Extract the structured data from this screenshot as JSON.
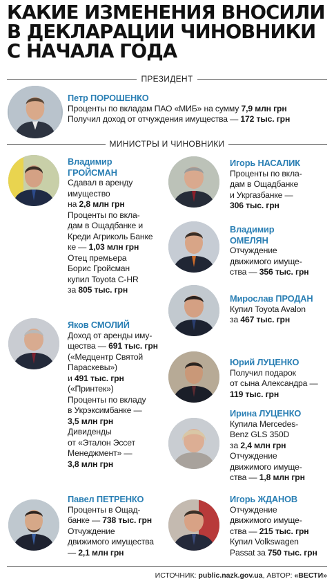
{
  "title": {
    "line1": "КАКИЕ ИЗМЕНЕНИЯ ВНОСИЛИ",
    "line2": "В ДЕКЛАРАЦИИ ЧИНОВНИКИ",
    "line3": "С НАЧАЛА ГОДА"
  },
  "sections": {
    "president": "ПРЕЗИДЕНТ",
    "ministers": "МИНИСТРЫ И ЧИНОВНИКИ"
  },
  "president": {
    "name": "Петр ПОРОШЕНКО",
    "l1_text": "Проценты по вкладам ПАО «МИБ» на сумму",
    "l1_amount": "7,9 млн грн",
    "l2_text": "Получил доход от отчуждения имущества —",
    "l2_amount": "172 тыс. грн"
  },
  "groysman": {
    "name1": "Владимир",
    "name2": "ГРОЙСМАН",
    "l1": "Сдавал в аренду",
    "l2": "имущество",
    "l3_pre": "на",
    "l3_amount": "2,8 млн грн",
    "l4": "Проценты по вкла-",
    "l5": "дам в Ощадбанке и",
    "l6": "Креди Агриколь Банке",
    "l7_text": "ке —",
    "l7_amount": "1,03 млн грн",
    "l8": "Отец премьера",
    "l9": "Борис Гройсман",
    "l10": "купил Toyota C-HR",
    "l11_pre": "за",
    "l11_amount": "805 тыс. грн"
  },
  "smoliy": {
    "name": "Яков СМОЛИЙ",
    "l1": "Доход от аренды иму-",
    "l2_text": "щества —",
    "l2_amount": "691 тыс. грн",
    "l3": "(«Медцентр Святой",
    "l4": "Параскевы»)",
    "l5_pre": "и",
    "l5_amount": "491 тыс. грн",
    "l6": "(«Принтек»)",
    "l7": "Проценты по вкладу",
    "l8": "в Укрэксимбанке —",
    "l9_amount": "3,5 млн грн",
    "l10": "Дивиденды",
    "l11": "от «Эталон Эссет",
    "l12": "Менеджмент» —",
    "l13_amount": "3,8 млн грн"
  },
  "petrenko": {
    "name": "Павел ПЕТРЕНКО",
    "l1": "Проценты в Ощад-",
    "l2_text": "банке —",
    "l2_amount": "738 тыс. грн",
    "l3": "Отчуждение",
    "l4": "движимого имущества",
    "l5_amount": "2,1 млн грн"
  },
  "nasalik": {
    "name": "Игорь НАСАЛИК",
    "l1": "Проценты по вкла-",
    "l2": "дам в Ощадбанке",
    "l3": "и Укргазбанке —",
    "l4_amount": "306 тыс. грн"
  },
  "omelyan": {
    "name1": "Владимир",
    "name2": "ОМЕЛЯН",
    "l1": "Отчуждение",
    "l2": "движимого имуще-",
    "l3_text": "ства —",
    "l3_amount": "356 тыс. грн"
  },
  "prodan": {
    "name": "Мирослав ПРОДАН",
    "l1": "Купил Toyota Avalon",
    "l2_pre": "за",
    "l2_amount": "467 тыс. грн"
  },
  "lutsenko_y": {
    "name": "Юрий ЛУЦЕНКО",
    "l1": "Получил подарок",
    "l2": "от сына Александра —",
    "l3_amount": "119 тыс. грн"
  },
  "lutsenko_i": {
    "name": "Ирина ЛУЦЕНКО",
    "l1": "Купила Mercedes-",
    "l2": "Benz GLS 350D",
    "l3_pre": "за",
    "l3_amount": "2,4 млн грн",
    "l4": "Отчуждение",
    "l5": "движимого имуще-",
    "l6_text": "ства —",
    "l6_amount": "1,8 млн грн"
  },
  "zhdanov": {
    "name": "Игорь ЖДАНОВ",
    "l1": "Отчуждение",
    "l2": "движимого имуще-",
    "l3_text": "ства —",
    "l3_amount": "215 тыс. грн",
    "l4": "Купил Volkswagen",
    "l5_text": "Passat за",
    "l5_amount": "750 тыс. грн"
  },
  "footer": {
    "source_label": "ИСТОЧНИК:",
    "source_value": "public.nazk.gov.ua",
    "author_label": ", АВТОР:",
    "author_value": "«ВЕСТИ»"
  },
  "colors": {
    "name_accent": "#2a7fb4",
    "text": "#1a1a1a"
  }
}
